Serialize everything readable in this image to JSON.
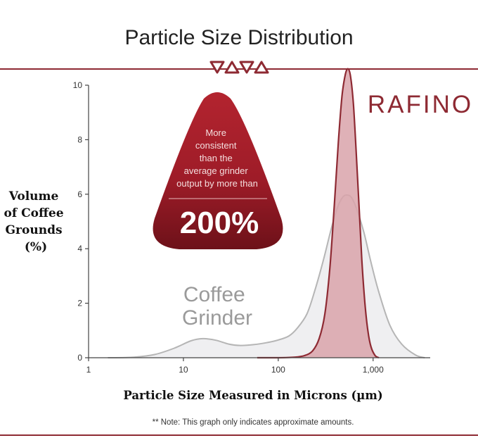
{
  "chart_data": {
    "type": "area",
    "title": "Particle Size Distribution",
    "xlabel": "Particle Size Measured in Microns (µm)",
    "ylabel_lines": [
      "Volume",
      "of Coffee",
      "Grounds",
      "(%)"
    ],
    "x_scale": "log",
    "xlim": [
      1,
      4000
    ],
    "ylim": [
      0,
      10
    ],
    "x_ticks": [
      1,
      10,
      100,
      1000
    ],
    "x_tick_labels": [
      "1",
      "10",
      "100",
      "1,000"
    ],
    "y_ticks": [
      0,
      2,
      4,
      6,
      8,
      10
    ],
    "y_tick_labels": [
      "0",
      "2",
      "4",
      "6",
      "8",
      "10"
    ],
    "grid": false,
    "legend": "none",
    "series": [
      {
        "name": "Coffee Grinder",
        "name_lines": [
          "Coffee",
          "Grinder"
        ],
        "color": "#b5b5b5",
        "fill": "#efeff1",
        "x": [
          1.6,
          3,
          5,
          8,
          12,
          16,
          22,
          30,
          40,
          55,
          75,
          100,
          130,
          160,
          200,
          240,
          300,
          360,
          420,
          480,
          540,
          600,
          680,
          800,
          950,
          1150,
          1500,
          2000,
          2800,
          3500
        ],
        "y": [
          0,
          0.02,
          0.12,
          0.35,
          0.62,
          0.7,
          0.64,
          0.5,
          0.45,
          0.48,
          0.55,
          0.65,
          0.8,
          1.1,
          1.6,
          2.4,
          3.6,
          4.7,
          5.5,
          5.9,
          5.97,
          5.85,
          5.4,
          4.6,
          3.5,
          2.4,
          1.2,
          0.5,
          0.1,
          0
        ]
      },
      {
        "name": "RAFINO",
        "color": "#8e2a33",
        "fill": "#d9a3aa",
        "x": [
          60,
          100,
          150,
          190,
          230,
          270,
          310,
          350,
          390,
          430,
          470,
          510,
          545,
          580,
          620,
          660,
          710,
          760,
          820,
          880,
          950,
          1050,
          1150
        ],
        "y": [
          0,
          0,
          0.02,
          0.08,
          0.25,
          0.7,
          1.6,
          3.3,
          5.6,
          7.9,
          9.6,
          10.4,
          10.6,
          10.3,
          9.3,
          7.7,
          5.6,
          3.6,
          2.0,
          1.0,
          0.4,
          0.08,
          0
        ]
      }
    ]
  },
  "brand": {
    "name": "RAFINO",
    "color": "#8e2a33"
  },
  "callout": {
    "text_lines": [
      "More",
      "consistent",
      "than the",
      "average grinder",
      "output by more than"
    ],
    "value": "200%",
    "color": "#9e1c28"
  },
  "note": "** Note: This graph only indicates approximate amounts."
}
